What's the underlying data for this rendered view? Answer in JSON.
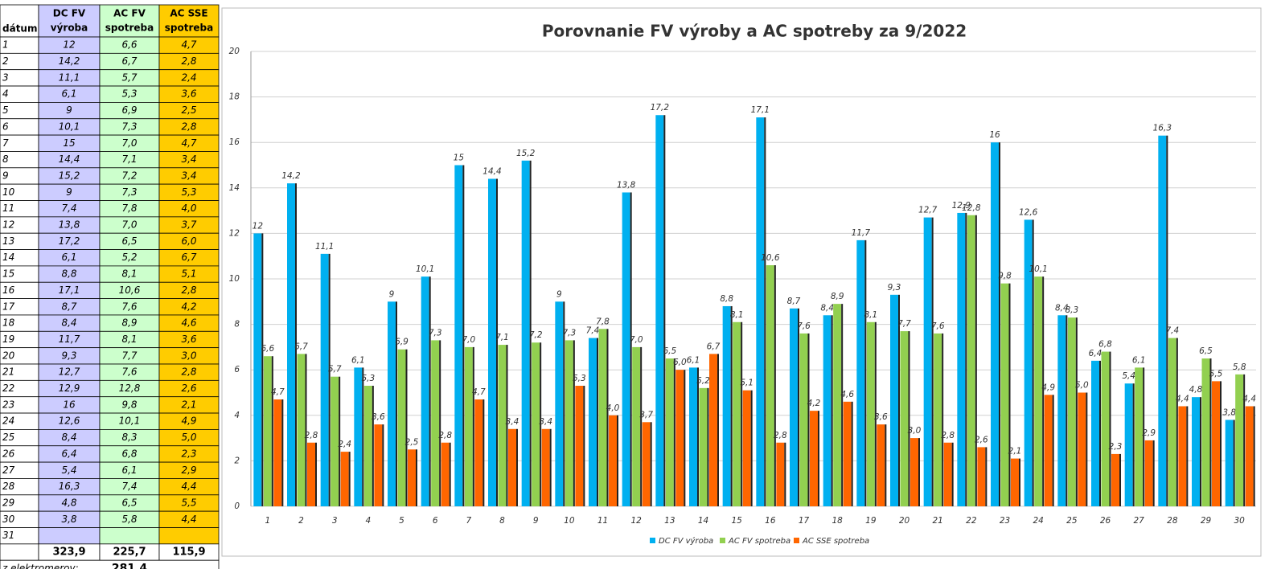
{
  "table": {
    "headers": [
      [
        "dátum"
      ],
      [
        "DC FV",
        "výroba"
      ],
      [
        "AC FV",
        "spotreba"
      ],
      [
        "AC SSE",
        "spotreba"
      ]
    ],
    "last_day": "31",
    "totals": [
      "323,9",
      "225,7",
      "115,9"
    ],
    "meter_label": "z elektromerov:",
    "meter_value": "281,4"
  },
  "chart_data": {
    "type": "bar",
    "title": "Porovnanie FV výroby a AC spotreby za 9/2022",
    "categories": [
      "1",
      "2",
      "3",
      "4",
      "5",
      "6",
      "7",
      "8",
      "9",
      "10",
      "11",
      "12",
      "13",
      "14",
      "15",
      "16",
      "17",
      "18",
      "19",
      "20",
      "21",
      "22",
      "23",
      "24",
      "25",
      "26",
      "27",
      "28",
      "29",
      "30"
    ],
    "series": [
      {
        "name": "DC FV výroba",
        "color": "#00b0f0",
        "values": [
          12,
          14.2,
          11.1,
          6.1,
          9,
          10.1,
          15,
          14.4,
          15.2,
          9,
          7.4,
          13.8,
          17.2,
          6.1,
          8.8,
          17.1,
          8.7,
          8.4,
          11.7,
          9.3,
          12.7,
          12.9,
          16,
          12.6,
          8.4,
          6.4,
          5.4,
          16.3,
          4.8,
          3.8
        ],
        "value_labels": [
          "12",
          "14,2",
          "11,1",
          "6,1",
          "9",
          "10,1",
          "15",
          "14,4",
          "15,2",
          "9",
          "7,4",
          "13,8",
          "17,2",
          "6,1",
          "8,8",
          "17,1",
          "8,7",
          "8,4",
          "11,7",
          "9,3",
          "12,7",
          "12,9",
          "16",
          "12,6",
          "8,4",
          "6,4",
          "5,4",
          "16,3",
          "4,8",
          "3,8"
        ]
      },
      {
        "name": "AC FV spotreba",
        "color": "#92d050",
        "values": [
          6.6,
          6.7,
          5.7,
          5.3,
          6.9,
          7.3,
          7.0,
          7.1,
          7.2,
          7.3,
          7.8,
          7.0,
          6.5,
          5.2,
          8.1,
          10.6,
          7.6,
          8.9,
          8.1,
          7.7,
          7.6,
          12.8,
          9.8,
          10.1,
          8.3,
          6.8,
          6.1,
          7.4,
          6.5,
          5.8
        ],
        "value_labels": [
          "6,6",
          "6,7",
          "5,7",
          "5,3",
          "6,9",
          "7,3",
          "7,0",
          "7,1",
          "7,2",
          "7,3",
          "7,8",
          "7,0",
          "6,5",
          "5,2",
          "8,1",
          "10,6",
          "7,6",
          "8,9",
          "8,1",
          "7,7",
          "7,6",
          "12,8",
          "9,8",
          "10,1",
          "8,3",
          "6,8",
          "6,1",
          "7,4",
          "6,5",
          "5,8"
        ]
      },
      {
        "name": "AC SSE spotreba",
        "color": "#ff6600",
        "values": [
          4.7,
          2.8,
          2.4,
          3.6,
          2.5,
          2.8,
          4.7,
          3.4,
          3.4,
          5.3,
          4.0,
          3.7,
          6.0,
          6.7,
          5.1,
          2.8,
          4.2,
          4.6,
          3.6,
          3.0,
          2.8,
          2.6,
          2.1,
          4.9,
          5.0,
          2.3,
          2.9,
          4.4,
          5.5,
          4.4
        ],
        "value_labels": [
          "4,7",
          "2,8",
          "2,4",
          "3,6",
          "2,5",
          "2,8",
          "4,7",
          "3,4",
          "3,4",
          "5,3",
          "4,0",
          "3,7",
          "6,0",
          "6,7",
          "5,1",
          "2,8",
          "4,2",
          "4,6",
          "3,6",
          "3,0",
          "2,8",
          "2,6",
          "2,1",
          "4,9",
          "5,0",
          "2,3",
          "2,9",
          "4,4",
          "5,5",
          "4,4"
        ]
      }
    ],
    "ylim": [
      0,
      20
    ],
    "yticks": [
      0,
      2,
      4,
      6,
      8,
      10,
      12,
      14,
      16,
      18,
      20
    ],
    "grid": true,
    "legend": "bottom"
  }
}
